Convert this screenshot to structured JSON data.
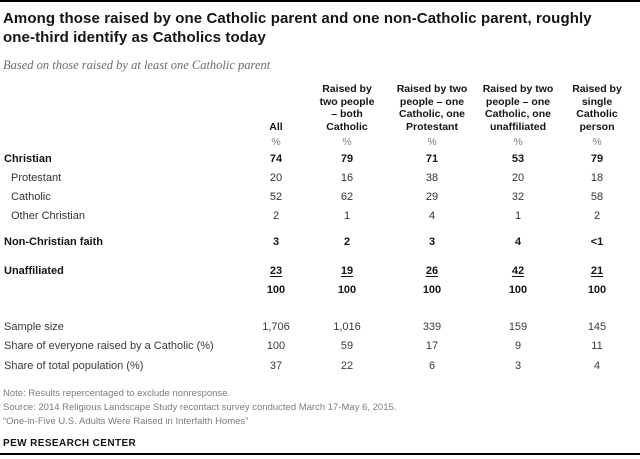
{
  "colors": {
    "rule": "#000000",
    "title_text": "#141414",
    "subtitle_text": "#6b6b6b",
    "body_text": "#333333",
    "muted_text": "#7d7d7d"
  },
  "chart_data": {
    "type": "table",
    "title": "Among those raised by one Catholic parent and one non-Catholic parent, roughly one-third identify as Catholics today",
    "subtitle": "Based on those raised by at least one Catholic parent",
    "unit": "%",
    "columns": [
      "All",
      "Raised by two people – both Catholic",
      "Raised by two people – one Catholic, one Protestant",
      "Raised by two people – one Catholic, one unaffiliated",
      "Raised by single Catholic person"
    ],
    "rows": [
      {
        "label": "Christian",
        "values": [
          "74",
          "79",
          "71",
          "53",
          "79"
        ]
      },
      {
        "label": "Protestant",
        "values": [
          "20",
          "16",
          "38",
          "20",
          "18"
        ]
      },
      {
        "label": "Catholic",
        "values": [
          "52",
          "62",
          "29",
          "32",
          "58"
        ]
      },
      {
        "label": "Other Christian",
        "values": [
          "2",
          "1",
          "4",
          "1",
          "2"
        ]
      },
      {
        "label": "Non-Christian faith",
        "values": [
          "3",
          "2",
          "3",
          "4",
          "<1"
        ]
      },
      {
        "label": "Unaffiliated",
        "values": [
          "23",
          "19",
          "26",
          "42",
          "21"
        ]
      },
      {
        "label": "",
        "values": [
          "100",
          "100",
          "100",
          "100",
          "100"
        ]
      },
      {
        "label": "Sample size",
        "values": [
          "1,706",
          "1,016",
          "339",
          "159",
          "145"
        ]
      },
      {
        "label": "Share of everyone raised by a Catholic (%)",
        "values": [
          "100",
          "59",
          "17",
          "9",
          "11"
        ]
      },
      {
        "label": "Share of total population (%)",
        "values": [
          "37",
          "22",
          "6",
          "3",
          "4"
        ]
      }
    ]
  },
  "display": {
    "title": "Among those raised by one Catholic parent and one non-Catholic parent, roughly\none-third identify as Catholics today",
    "columns": [
      "All",
      "Raised by\ntwo people\n– both\nCatholic",
      "Raised by two\npeople – one\nCatholic, one\nProtestant",
      "Raised by two\npeople – one\nCatholic, one\nunaffiliated",
      "Raised by\nsingle\nCatholic\nperson"
    ],
    "percent": "%"
  },
  "footer": {
    "note": "Note: Results repercentaged to exclude nonresponse.",
    "source": "Source: 2014 Religious Landscape Study recontact survey conducted March 17-May 6, 2015.",
    "quote": "“One-in-Five U.S. Adults Were Raised in Interfaith Homes”",
    "brand": "PEW RESEARCH CENTER"
  }
}
